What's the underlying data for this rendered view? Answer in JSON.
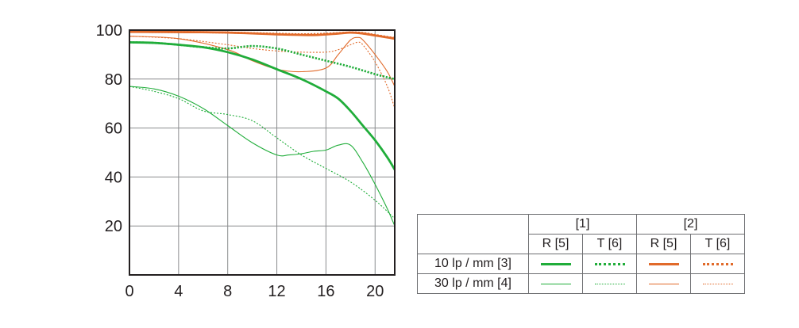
{
  "chart_data": {
    "type": "line",
    "title": "",
    "xlabel": "",
    "ylabel": "",
    "xlim": [
      0,
      21.6
    ],
    "ylim": [
      0,
      100
    ],
    "x_ticks": [
      "0",
      "4",
      "8",
      "12",
      "16",
      "20"
    ],
    "y_ticks": [
      "20",
      "40",
      "60",
      "80",
      "100"
    ],
    "grid": true,
    "legend_position": "bottom-right",
    "colors": {
      "green": "#20ad3a",
      "orange": "#e16a2a"
    },
    "series": [
      {
        "group": "1",
        "frequency": "10",
        "direction": "R",
        "color": "#20ad3a",
        "style": "solid",
        "weight": "thick",
        "points": [
          [
            0,
            95
          ],
          [
            2,
            94.8
          ],
          [
            4,
            94
          ],
          [
            6,
            93
          ],
          [
            8,
            91
          ],
          [
            10,
            88
          ],
          [
            12,
            84
          ],
          [
            14,
            80
          ],
          [
            16,
            75
          ],
          [
            17,
            72
          ],
          [
            18,
            67
          ],
          [
            19,
            61
          ],
          [
            20,
            55
          ],
          [
            21,
            48
          ],
          [
            21.6,
            43
          ]
        ]
      },
      {
        "group": "1",
        "frequency": "10",
        "direction": "T",
        "color": "#20ad3a",
        "style": "dotted",
        "weight": "thick",
        "points": [
          [
            0,
            95
          ],
          [
            2,
            94.8
          ],
          [
            4,
            94
          ],
          [
            6,
            93
          ],
          [
            8,
            92.5
          ],
          [
            10,
            93.5
          ],
          [
            12,
            92.5
          ],
          [
            14,
            90
          ],
          [
            16,
            87.5
          ],
          [
            18,
            85
          ],
          [
            20,
            82
          ],
          [
            21.6,
            80
          ]
        ]
      },
      {
        "group": "1",
        "frequency": "30",
        "direction": "R",
        "color": "#20ad3a",
        "style": "solid",
        "weight": "thin",
        "points": [
          [
            0,
            77
          ],
          [
            2,
            76
          ],
          [
            4,
            73
          ],
          [
            6,
            68
          ],
          [
            8,
            61
          ],
          [
            10,
            54
          ],
          [
            12,
            49
          ],
          [
            13,
            49
          ],
          [
            14,
            49.5
          ],
          [
            15,
            50.5
          ],
          [
            16,
            51
          ],
          [
            17,
            53
          ],
          [
            18,
            53
          ],
          [
            19,
            46
          ],
          [
            20,
            37
          ],
          [
            21,
            27
          ],
          [
            21.6,
            20
          ]
        ]
      },
      {
        "group": "1",
        "frequency": "30",
        "direction": "T",
        "color": "#20ad3a",
        "style": "dotted",
        "weight": "thin",
        "points": [
          [
            0,
            77
          ],
          [
            2,
            75
          ],
          [
            4,
            72
          ],
          [
            6,
            67
          ],
          [
            8,
            65.5
          ],
          [
            10,
            63
          ],
          [
            12,
            56
          ],
          [
            14,
            49
          ],
          [
            16,
            43.5
          ],
          [
            18,
            38
          ],
          [
            20,
            30.5
          ],
          [
            21.6,
            23
          ]
        ]
      },
      {
        "group": "2",
        "frequency": "10",
        "direction": "R",
        "color": "#e16a2a",
        "style": "solid",
        "weight": "thick",
        "points": [
          [
            0,
            99.3
          ],
          [
            4,
            99.2
          ],
          [
            8,
            99
          ],
          [
            12,
            98.3
          ],
          [
            15,
            98
          ],
          [
            17,
            98.6
          ],
          [
            18,
            99
          ],
          [
            19,
            98.6
          ],
          [
            20,
            97.8
          ],
          [
            21,
            97
          ],
          [
            21.6,
            96.5
          ]
        ]
      },
      {
        "group": "2",
        "frequency": "10",
        "direction": "T",
        "color": "#e16a2a",
        "style": "dotted",
        "weight": "thick",
        "points": [
          [
            0,
            99.3
          ],
          [
            4,
            99.2
          ],
          [
            8,
            99
          ],
          [
            12,
            98.5
          ],
          [
            14,
            98.3
          ],
          [
            16,
            98.5
          ],
          [
            18,
            99
          ],
          [
            19,
            98.8
          ],
          [
            20,
            98
          ],
          [
            21,
            97.2
          ],
          [
            21.6,
            96.8
          ]
        ]
      },
      {
        "group": "2",
        "frequency": "30",
        "direction": "R",
        "color": "#e16a2a",
        "style": "solid",
        "weight": "thin",
        "points": [
          [
            0,
            97.5
          ],
          [
            4,
            96.5
          ],
          [
            8,
            92
          ],
          [
            10,
            87.5
          ],
          [
            12,
            84
          ],
          [
            14,
            83
          ],
          [
            16,
            84.5
          ],
          [
            17,
            90
          ],
          [
            18,
            96
          ],
          [
            18.6,
            97
          ],
          [
            19,
            96
          ],
          [
            20,
            90
          ],
          [
            21,
            83
          ],
          [
            21.6,
            77
          ]
        ]
      },
      {
        "group": "2",
        "frequency": "30",
        "direction": "T",
        "color": "#e16a2a",
        "style": "dotted",
        "weight": "thin",
        "points": [
          [
            0,
            97.5
          ],
          [
            4,
            96.5
          ],
          [
            8,
            94
          ],
          [
            10,
            92.5
          ],
          [
            12,
            91.5
          ],
          [
            14,
            91
          ],
          [
            16,
            91
          ],
          [
            17,
            92
          ],
          [
            18,
            94
          ],
          [
            18.6,
            95
          ],
          [
            19,
            94
          ],
          [
            20,
            87
          ],
          [
            21,
            77
          ],
          [
            21.6,
            68
          ]
        ]
      }
    ]
  },
  "legend": {
    "group_1": "[1]",
    "group_2": "[2]",
    "r_label": "R [5]",
    "t_label": "T [6]",
    "row_10": "10 lp / mm [3]",
    "row_30": "30 lp / mm [4]"
  }
}
